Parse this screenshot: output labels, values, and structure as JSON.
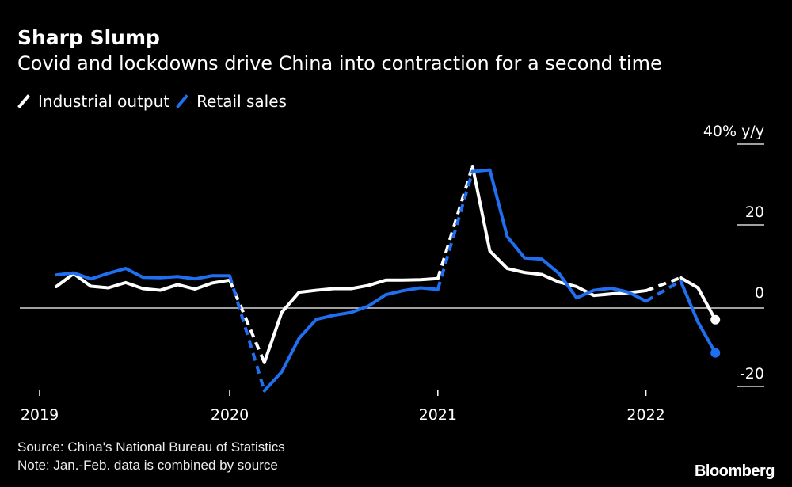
{
  "chart_data": {
    "type": "line",
    "title": "Sharp Slump",
    "subtitle": "Covid and lockdowns drive China into contraction for a second time",
    "unit_label": "40% y/y",
    "ylim": [
      -20,
      40
    ],
    "yticks": [
      40,
      20,
      0,
      -20
    ],
    "ytick_labels": [
      "",
      "20",
      "0",
      "-20"
    ],
    "xticks": [
      "2019",
      "2020",
      "2021",
      "2022"
    ],
    "legend_position": "top-left",
    "grid": false,
    "x": [
      "2019-02",
      "2019-03",
      "2019-04",
      "2019-05",
      "2019-06",
      "2019-07",
      "2019-08",
      "2019-09",
      "2019-10",
      "2019-11",
      "2019-12",
      "2020-02",
      "2020-03",
      "2020-04",
      "2020-05",
      "2020-06",
      "2020-07",
      "2020-08",
      "2020-09",
      "2020-10",
      "2020-11",
      "2020-12",
      "2021-02",
      "2021-03",
      "2021-04",
      "2021-05",
      "2021-06",
      "2021-07",
      "2021-08",
      "2021-09",
      "2021-10",
      "2021-11",
      "2021-12",
      "2022-02",
      "2022-03",
      "2022-04"
    ],
    "series": [
      {
        "name": "Industrial output",
        "color": "#ffffff",
        "values": [
          5.3,
          8.5,
          5.4,
          5.0,
          6.3,
          4.8,
          4.4,
          5.8,
          4.7,
          6.2,
          6.9,
          -13.5,
          -1.1,
          3.9,
          4.4,
          4.8,
          4.8,
          5.6,
          6.9,
          6.9,
          7.0,
          7.3,
          35.1,
          14.1,
          9.8,
          8.8,
          8.3,
          6.4,
          5.3,
          3.1,
          3.5,
          3.8,
          4.3,
          7.5,
          5.0,
          -2.9
        ]
      },
      {
        "name": "Retail sales",
        "color": "#1f6ff0",
        "values": [
          8.2,
          8.7,
          7.2,
          8.6,
          9.8,
          7.6,
          7.5,
          7.8,
          7.2,
          8.0,
          8.0,
          -20.5,
          -15.8,
          -7.5,
          -2.8,
          -1.8,
          -1.1,
          0.5,
          3.3,
          4.3,
          5.0,
          4.6,
          33.8,
          34.2,
          17.7,
          12.4,
          12.1,
          8.5,
          2.5,
          4.4,
          4.9,
          3.9,
          1.7,
          6.7,
          -3.5,
          -11.1
        ]
      }
    ],
    "annotations": {
      "dashed_segments": true,
      "endpoint_markers": true
    }
  },
  "footer": {
    "source": "Source: China's National Bureau of Statistics",
    "note": "Note: Jan.-Feb. data is combined by source",
    "logo": "Bloomberg"
  }
}
